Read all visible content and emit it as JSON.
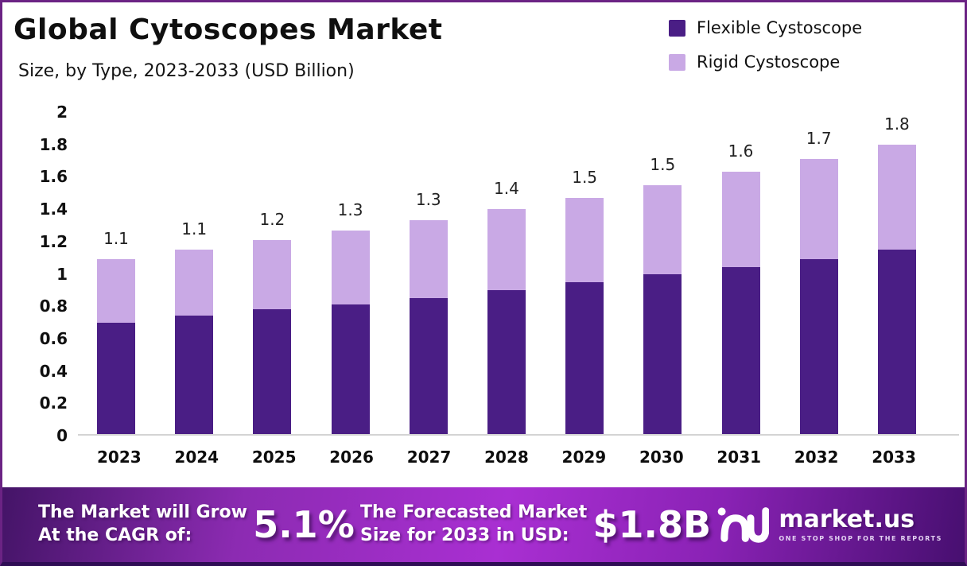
{
  "header": {
    "title": "Global Cytoscopes Market",
    "subtitle": "Size, by Type, 2023-2033 (USD Billion)"
  },
  "chart_data": {
    "type": "bar",
    "stacked": true,
    "title": "Global Cytoscopes Market Size, by Type, 2023-2033 (USD Billion)",
    "categories": [
      "2023",
      "2024",
      "2025",
      "2026",
      "2027",
      "2028",
      "2029",
      "2030",
      "2031",
      "2032",
      "2033"
    ],
    "series": [
      {
        "name": "Flexible Cystoscope",
        "color": "#4a1e85",
        "values": [
          0.69,
          0.73,
          0.77,
          0.8,
          0.84,
          0.89,
          0.94,
          0.99,
          1.03,
          1.08,
          1.14
        ]
      },
      {
        "name": "Rigid Cystoscope",
        "color": "#c9a9e5",
        "values": [
          0.39,
          0.41,
          0.43,
          0.46,
          0.48,
          0.5,
          0.52,
          0.55,
          0.59,
          0.62,
          0.65
        ]
      }
    ],
    "totals": [
      1.08,
      1.14,
      1.2,
      1.26,
      1.32,
      1.39,
      1.46,
      1.54,
      1.62,
      1.7,
      1.79
    ],
    "total_labels": [
      "1.1",
      "1.1",
      "1.2",
      "1.3",
      "1.3",
      "1.4",
      "1.5",
      "1.5",
      "1.6",
      "1.7",
      "1.8"
    ],
    "yticks": [
      "2",
      "1.8",
      "1.6",
      "1.4",
      "1.2",
      "1",
      "0.8",
      "0.6",
      "0.4",
      "0.2",
      "0"
    ],
    "ylim": [
      0,
      2
    ],
    "grid": false,
    "legend_position": "top-right",
    "xlabel": "",
    "ylabel": ""
  },
  "banner": {
    "cagr_text_line1": "The Market will Grow",
    "cagr_text_line2": "At the CAGR of:",
    "cagr_value": "5.1%",
    "forecast_text_line1": "The Forecasted Market",
    "forecast_text_line2": "Size for 2033 in USD:",
    "forecast_value": "$1.8B",
    "brand": {
      "name": "market.us",
      "tagline": "ONE STOP SHOP FOR THE REPORTS"
    }
  },
  "colors": {
    "flexible": "#4a1e85",
    "rigid": "#c9a9e5",
    "frame_border": "#6b2384",
    "banner_left": "#441467",
    "banner_center": "#a92fd2",
    "banner_right": "#470f70",
    "axis_line": "#d4d4d4"
  }
}
